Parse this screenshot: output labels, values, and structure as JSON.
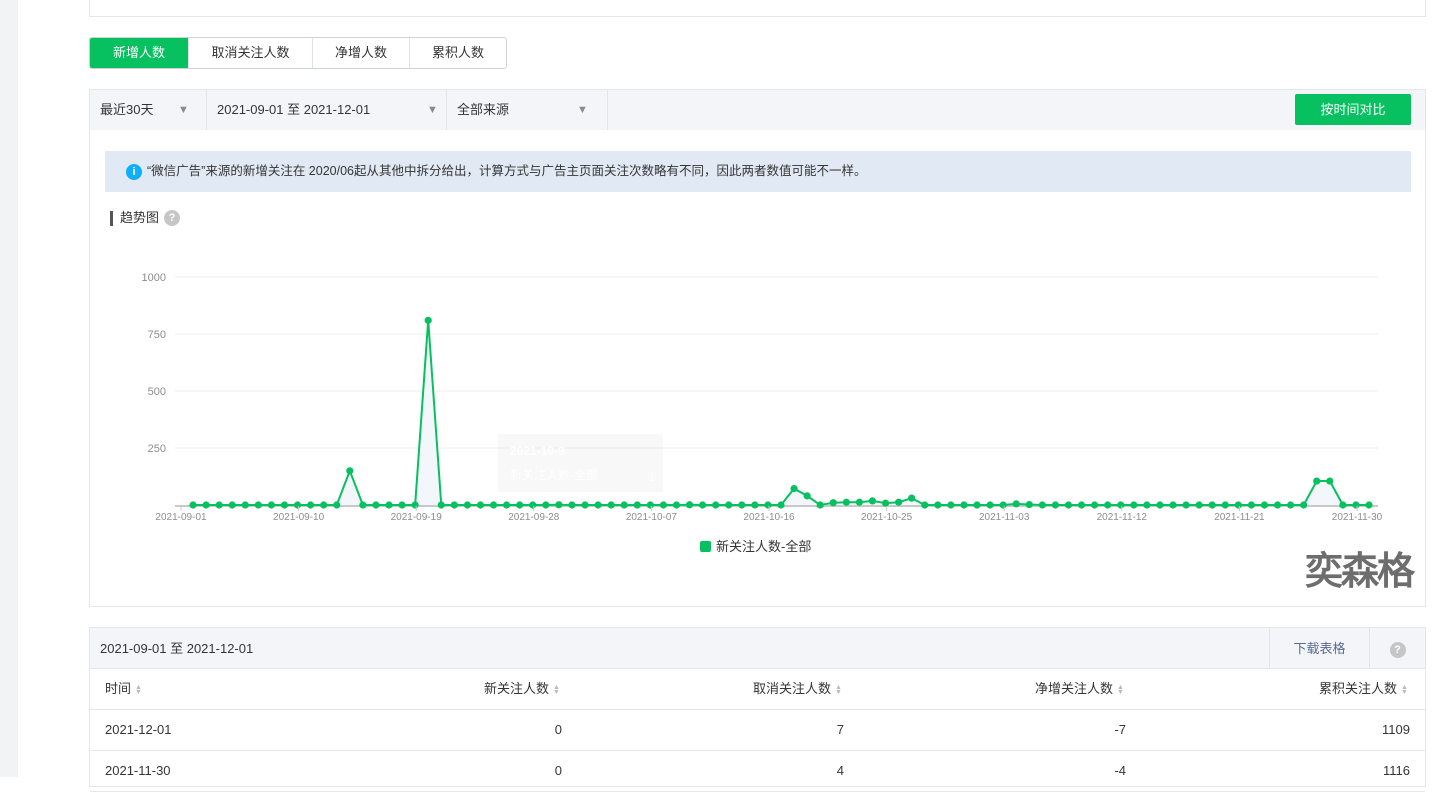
{
  "tabs": [
    {
      "label": "新增人数",
      "active": true
    },
    {
      "label": "取消关注人数"
    },
    {
      "label": "净增人数"
    },
    {
      "label": "累积人数"
    }
  ],
  "filters": {
    "period": "最近30天",
    "range": "2021-09-01 至 2021-12-01",
    "source": "全部来源",
    "compare_button": "按时间对比"
  },
  "notice": "“微信广告”来源的新增关注在 2020/06起从其他中拆分给出，计算方式与广告主页面关注次数略有不同，因此两者数值可能不一样。",
  "trend_title": "趋势图",
  "tooltip": {
    "date": "2021-10-9",
    "series": "新关注人数-全部",
    "value": "1"
  },
  "chart_data": {
    "type": "line",
    "x_start": "2021-09-01",
    "x_end": "2021-11-30",
    "x_tick_labels": [
      "2021-09-01",
      "2021-09-10",
      "2021-09-19",
      "2021-09-28",
      "2021-10-07",
      "2021-10-16",
      "2021-10-25",
      "2021-11-03",
      "2021-11-12",
      "2021-11-21",
      "2021-11-30"
    ],
    "y_tick_labels": [
      "250",
      "500",
      "750",
      "1000"
    ],
    "ylim": [
      0,
      1000
    ],
    "grid": true,
    "legend_position": "bottom",
    "color": "#07c160",
    "series": [
      {
        "name": "新关注人数-全部",
        "values": [
          0,
          0,
          0,
          0,
          0,
          0,
          0,
          0,
          0,
          0,
          0,
          0,
          150,
          0,
          0,
          0,
          0,
          0,
          810,
          0,
          0,
          0,
          0,
          0,
          0,
          0,
          0,
          0,
          1,
          0,
          0,
          0,
          0,
          0,
          0,
          0,
          0,
          0,
          1,
          0,
          0,
          0,
          0,
          0,
          0,
          0,
          72,
          40,
          0,
          10,
          12,
          12,
          18,
          8,
          12,
          30,
          0,
          0,
          0,
          0,
          0,
          0,
          0,
          5,
          2,
          0,
          0,
          0,
          0,
          0,
          0,
          0,
          0,
          0,
          0,
          0,
          0,
          0,
          0,
          0,
          0,
          0,
          0,
          0,
          0,
          0,
          105,
          105,
          0,
          0,
          0
        ]
      }
    ]
  },
  "table": {
    "range": "2021-09-01 至 2021-12-01",
    "download": "下载表格",
    "columns": [
      "时间",
      "新关注人数",
      "取消关注人数",
      "净增关注人数",
      "累积关注人数"
    ],
    "rows": [
      [
        "2021-12-01",
        "0",
        "7",
        "-7",
        "1109"
      ],
      [
        "2021-11-30",
        "0",
        "4",
        "-4",
        "1116"
      ]
    ]
  },
  "watermark": "奕森格"
}
